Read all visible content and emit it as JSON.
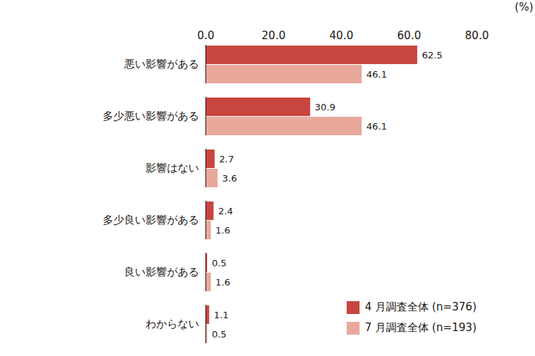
{
  "chart_data": {
    "type": "bar",
    "orientation": "horizontal",
    "x_label": "(%)",
    "categories": [
      "悪い影響がある",
      "多少悪い影響がある",
      "影響はない",
      "多少良い影響がある",
      "良い影響がある",
      "わからない"
    ],
    "series": [
      {
        "name": "4 月調査全体 (n=376)",
        "color": "#c9453f",
        "values": [
          62.5,
          30.9,
          2.7,
          2.4,
          0.5,
          1.1
        ]
      },
      {
        "name": "7 月調査全体 (n=193)",
        "color": "#e8a99c",
        "values": [
          46.1,
          46.1,
          3.6,
          1.6,
          1.6,
          0.5
        ]
      }
    ],
    "xlim": [
      0,
      80
    ],
    "xticks": [
      {
        "value": 0,
        "label": "0.0"
      },
      {
        "value": 20,
        "label": "20.0"
      },
      {
        "value": 40,
        "label": "40.0"
      },
      {
        "value": 60,
        "label": "60.0"
      },
      {
        "value": 80,
        "label": "80.0"
      }
    ],
    "grid": false,
    "data_labels": true,
    "legend": "bottom-right"
  }
}
